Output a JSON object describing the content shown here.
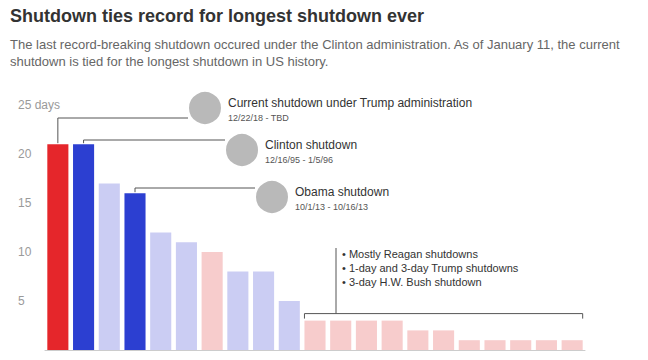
{
  "chart_data": {
    "type": "bar",
    "title": "Shutdown ties record for longest shutdown ever",
    "subtitle": "The last record-breaking shutdown occured under the Clinton administration. As of January 11, the current shutdown is tied for the longest shutdown in US history.",
    "categories": [
      null,
      null,
      null,
      null,
      null,
      null,
      null,
      null,
      null,
      null,
      null,
      null,
      null,
      null,
      null,
      null,
      null,
      null,
      null,
      null,
      null
    ],
    "values": [
      21,
      21,
      17,
      16,
      12,
      11,
      10,
      8,
      8,
      5,
      3,
      3,
      3,
      3,
      2,
      2,
      1,
      1,
      1,
      1,
      1
    ],
    "colors": [
      "#e5262b",
      "#2c3fd1",
      "#cbcdf3",
      "#2c3fd1",
      "#cbcdf3",
      "#cbcdf3",
      "#f7cccc",
      "#cbcdf3",
      "#cbcdf3",
      "#cbcdf3",
      "#f7cccc",
      "#f7cccc",
      "#f7cccc",
      "#f7cccc",
      "#f7cccc",
      "#f7cccc",
      "#f7cccc",
      "#f7cccc",
      "#f7cccc",
      "#f7cccc",
      "#f7cccc"
    ],
    "ylim": [
      0,
      25
    ],
    "yticks": [
      5,
      10,
      15,
      20,
      {
        "value": 25,
        "label": "25 days"
      }
    ],
    "grid": false,
    "annotations": [
      {
        "text": "Current shutdown under Trump administration",
        "dates": "12/22/18 - TBD"
      },
      {
        "text": "Clinton shutdown",
        "dates": "12/16/95 - 1/5/96"
      },
      {
        "text": "Obama shutdown",
        "dates": "10/1/13 - 10/16/13"
      }
    ],
    "bracket_annotation": [
      "• Mostly Reagan shutdowns",
      "• 1-day and 3-day Trump shutdowns",
      "• 3-day H.W. Bush shutdown"
    ]
  }
}
